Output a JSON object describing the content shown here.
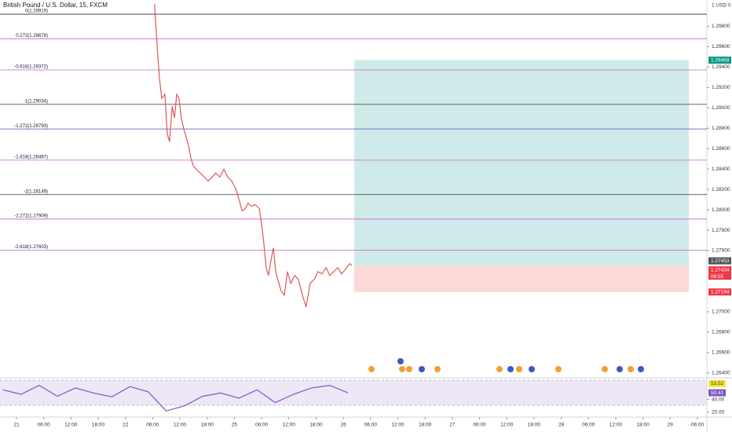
{
  "chart_data": [
    {
      "type": "line",
      "title": "British Pound / U.S. Dollar, 15, FXCM",
      "currency_label": "1 USD 0",
      "color": "#e0575a",
      "x": [
        30.4,
        31.0,
        31.5,
        32.0,
        32.7,
        33.2,
        33.7,
        34.3,
        34.8,
        35.3,
        35.8,
        36.3,
        36.9,
        37.4,
        37.9,
        38.4,
        38.9,
        39.6,
        40.5,
        41.4,
        42.2,
        43.1,
        43.9,
        44.8,
        45.7,
        46.5,
        47.4,
        48.3,
        49.1,
        49.7,
        50.4,
        51.0,
        51.7,
        52.6,
        53.5,
        54.0,
        54.5,
        55.0,
        55.5,
        56.1,
        56.6,
        57.1,
        57.8,
        58.3,
        59.0,
        59.7,
        60.4,
        61.3,
        62.1,
        63.0,
        63.8,
        64.7,
        65.6,
        66.4,
        67.3,
        68.2,
        69.0,
        69.9,
        70.8,
        71.6,
        72.5,
        73.4,
        73.9
      ],
      "values": [
        1.30019,
        1.29595,
        1.29286,
        1.29093,
        1.29132,
        1.28746,
        1.28668,
        1.29016,
        1.289,
        1.29132,
        1.29093,
        1.289,
        1.28784,
        1.28707,
        1.2863,
        1.28514,
        1.28437,
        1.28398,
        1.2836,
        1.28321,
        1.28282,
        1.28321,
        1.2836,
        1.28321,
        1.28398,
        1.28321,
        1.28282,
        1.28205,
        1.28089,
        1.27989,
        1.28012,
        1.28066,
        1.28035,
        1.2805,
        1.28012,
        1.27858,
        1.27665,
        1.27433,
        1.27356,
        1.2751,
        1.27626,
        1.27394,
        1.27279,
        1.27202,
        1.27163,
        1.27394,
        1.27279,
        1.27356,
        1.27317,
        1.27163,
        1.27047,
        1.27279,
        1.27317,
        1.27394,
        1.27371,
        1.27433,
        1.27356,
        1.27394,
        1.27433,
        1.27371,
        1.27418,
        1.27472,
        1.27453
      ],
      "xlim": [
        -3.63,
        152.08
      ],
      "ylim": [
        1.26352,
        1.30058
      ],
      "yticks": [
        {
          "value": 1.298,
          "label": "1.29800"
        },
        {
          "value": 1.296,
          "label": "1.29600"
        },
        {
          "value": 1.294,
          "label": "1.29400"
        },
        {
          "value": 1.292,
          "label": "1.29200"
        },
        {
          "value": 1.29,
          "label": "1.29000"
        },
        {
          "value": 1.288,
          "label": "1.28800"
        },
        {
          "value": 1.286,
          "label": "1.28600"
        },
        {
          "value": 1.284,
          "label": "1.28400"
        },
        {
          "value": 1.282,
          "label": "1.28200"
        },
        {
          "value": 1.28,
          "label": "1.28000"
        },
        {
          "value": 1.278,
          "label": "1.27800"
        },
        {
          "value": 1.276,
          "label": "1.27600"
        },
        {
          "value": 1.27,
          "label": "1.27000"
        },
        {
          "value": 1.268,
          "label": "1.26800"
        },
        {
          "value": 1.266,
          "label": "1.26600"
        },
        {
          "value": 1.264,
          "label": "1.26400"
        }
      ],
      "xticks": [
        {
          "value": 0,
          "label": "21"
        },
        {
          "value": 6,
          "label": "06:00"
        },
        {
          "value": 12,
          "label": "12:00"
        },
        {
          "value": 18,
          "label": "18:00"
        },
        {
          "value": 24,
          "label": "22"
        },
        {
          "value": 30,
          "label": "06:00"
        },
        {
          "value": 36,
          "label": "12:00"
        },
        {
          "value": 42,
          "label": "18:00"
        },
        {
          "value": 48,
          "label": "25"
        },
        {
          "value": 54,
          "label": "06:00"
        },
        {
          "value": 60,
          "label": "12:00"
        },
        {
          "value": 66,
          "label": "18:00"
        },
        {
          "value": 72,
          "label": "26"
        },
        {
          "value": 78,
          "label": "06:00"
        },
        {
          "value": 84,
          "label": "12:00"
        },
        {
          "value": 90,
          "label": "18:00"
        },
        {
          "value": 96,
          "label": "27"
        },
        {
          "value": 102,
          "label": "06:00"
        },
        {
          "value": 108,
          "label": "12:00"
        },
        {
          "value": 114,
          "label": "18:00"
        },
        {
          "value": 120,
          "label": "28"
        },
        {
          "value": 126,
          "label": "06:00"
        },
        {
          "value": 132,
          "label": "12:00"
        },
        {
          "value": 138,
          "label": "18:00"
        },
        {
          "value": 144,
          "label": "29"
        },
        {
          "value": 150,
          "label": "06:00"
        }
      ],
      "fib_levels": [
        {
          "label": "0(1.29919)",
          "value": 1.29919,
          "color": "#333333"
        },
        {
          "label": "0.272(1.29678)",
          "value": 1.29678,
          "color": "#c45fd8"
        },
        {
          "label": "-0.618(1.29372)",
          "value": 1.29372,
          "color": "#c45fd8"
        },
        {
          "label": "-1(1.29034)",
          "value": 1.29034,
          "color": "#333333"
        },
        {
          "label": "-1.272(1.28793)",
          "value": 1.28793,
          "color": "#6f5bd3"
        },
        {
          "label": "-1.618(1.28487)",
          "value": 1.28487,
          "color": "#c45fd8"
        },
        {
          "label": "-2(1.28149)",
          "value": 1.28149,
          "color": "#333333"
        },
        {
          "label": "-2.272(1.27909)",
          "value": 1.27909,
          "color": "#c45fd8"
        },
        {
          "label": "-2.618(1.27603)",
          "value": 1.27603,
          "color": "#c45fd8"
        }
      ],
      "position": {
        "start": 74.4,
        "end": 148.1,
        "target": 1.29468,
        "entry": 1.27453,
        "stop": 1.27194,
        "target_label": "1.29468",
        "entry_label": "1.27453",
        "stop_label": "1.27194"
      },
      "last_price": 1.27434,
      "last_price_label": "1.27434",
      "countdown": "06:55"
    },
    {
      "type": "line",
      "color": "#7e57c2",
      "x": [
        -3,
        1,
        5,
        9,
        13,
        17,
        21,
        25,
        29,
        33,
        37,
        41,
        45,
        49,
        53,
        57,
        61,
        65,
        69,
        73
      ],
      "values": [
        55,
        48,
        62,
        45,
        58,
        50,
        44,
        60,
        52,
        22,
        30,
        45,
        50,
        42,
        55,
        35,
        48,
        58,
        62,
        50.41
      ],
      "xlim": [
        -3.63,
        152.08
      ],
      "ylim": [
        12.5,
        73.75
      ],
      "yticks": [
        {
          "value": 40,
          "label": "40.00"
        },
        {
          "value": 20,
          "label": "20.00"
        }
      ],
      "last_label": "50.41",
      "ma_value": 53.52,
      "ma_label": "53.52"
    }
  ]
}
